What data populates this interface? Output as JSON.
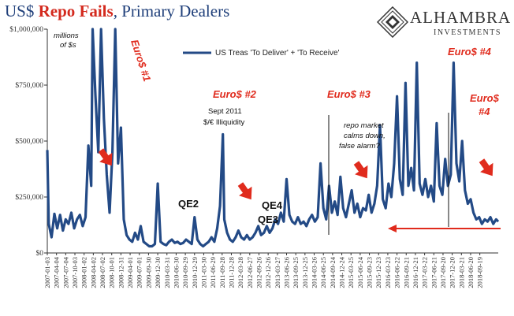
{
  "title": {
    "prefix": "US$ ",
    "highlight": "Repo Fails",
    "suffix": ", Primary Dealers"
  },
  "logo": {
    "name": "ALHAMBRA",
    "sub": "INVESTMENTS"
  },
  "colors": {
    "series": "#234a86",
    "red": "#e02b1d",
    "title_blue": "#1f3f7a"
  },
  "chart_data": {
    "type": "line",
    "series": [
      {
        "name": "US Treas 'To Deliver' + 'To Receive'",
        "x_start": "2007-01-03",
        "x_end": "2019-03-20",
        "points": [
          [
            "2007-01-03",
            460000
          ],
          [
            "2007-01-17",
            130000
          ],
          [
            "2007-02-14",
            70000
          ],
          [
            "2007-03-14",
            175000
          ],
          [
            "2007-04-11",
            110000
          ],
          [
            "2007-05-09",
            170000
          ],
          [
            "2007-06-06",
            100000
          ],
          [
            "2007-07-04",
            150000
          ],
          [
            "2007-08-01",
            130000
          ],
          [
            "2007-08-29",
            180000
          ],
          [
            "2007-09-26",
            110000
          ],
          [
            "2007-10-24",
            150000
          ],
          [
            "2007-11-21",
            170000
          ],
          [
            "2007-12-19",
            120000
          ],
          [
            "2008-01-16",
            160000
          ],
          [
            "2008-02-13",
            480000
          ],
          [
            "2008-03-12",
            300000
          ],
          [
            "2008-03-26",
            1000000
          ],
          [
            "2008-04-23",
            700000
          ],
          [
            "2008-05-21",
            450000
          ],
          [
            "2008-06-18",
            1000000
          ],
          [
            "2008-07-16",
            600000
          ],
          [
            "2008-08-13",
            350000
          ],
          [
            "2008-09-10",
            180000
          ],
          [
            "2008-10-08",
            450000
          ],
          [
            "2008-11-05",
            1000000
          ],
          [
            "2008-12-03",
            400000
          ],
          [
            "2008-12-31",
            560000
          ],
          [
            "2009-01-28",
            150000
          ],
          [
            "2009-02-25",
            80000
          ],
          [
            "2009-03-25",
            60000
          ],
          [
            "2009-04-22",
            50000
          ],
          [
            "2009-05-20",
            90000
          ],
          [
            "2009-06-17",
            60000
          ],
          [
            "2009-07-15",
            120000
          ],
          [
            "2009-08-12",
            50000
          ],
          [
            "2009-09-09",
            40000
          ],
          [
            "2009-10-07",
            30000
          ],
          [
            "2009-11-04",
            30000
          ],
          [
            "2009-12-02",
            40000
          ],
          [
            "2009-12-30",
            310000
          ],
          [
            "2010-01-27",
            50000
          ],
          [
            "2010-02-24",
            40000
          ],
          [
            "2010-03-24",
            35000
          ],
          [
            "2010-04-21",
            50000
          ],
          [
            "2010-05-19",
            60000
          ],
          [
            "2010-06-16",
            45000
          ],
          [
            "2010-07-14",
            50000
          ],
          [
            "2010-08-11",
            40000
          ],
          [
            "2010-09-08",
            45000
          ],
          [
            "2010-10-06",
            60000
          ],
          [
            "2010-11-03",
            50000
          ],
          [
            "2010-12-01",
            40000
          ],
          [
            "2010-12-29",
            160000
          ],
          [
            "2011-01-26",
            60000
          ],
          [
            "2011-02-23",
            40000
          ],
          [
            "2011-03-23",
            30000
          ],
          [
            "2011-04-20",
            40000
          ],
          [
            "2011-05-18",
            50000
          ],
          [
            "2011-06-15",
            70000
          ],
          [
            "2011-07-13",
            50000
          ],
          [
            "2011-08-10",
            110000
          ],
          [
            "2011-09-07",
            210000
          ],
          [
            "2011-10-05",
            530000
          ],
          [
            "2011-10-19",
            150000
          ],
          [
            "2011-11-16",
            90000
          ],
          [
            "2011-12-14",
            60000
          ],
          [
            "2012-01-11",
            50000
          ],
          [
            "2012-02-08",
            70000
          ],
          [
            "2012-03-07",
            100000
          ],
          [
            "2012-04-04",
            70000
          ],
          [
            "2012-05-02",
            60000
          ],
          [
            "2012-05-30",
            80000
          ],
          [
            "2012-06-27",
            60000
          ],
          [
            "2012-07-25",
            70000
          ],
          [
            "2012-08-22",
            90000
          ],
          [
            "2012-09-19",
            120000
          ],
          [
            "2012-10-17",
            80000
          ],
          [
            "2012-11-14",
            90000
          ],
          [
            "2012-12-12",
            120000
          ],
          [
            "2013-01-09",
            90000
          ],
          [
            "2013-02-06",
            110000
          ],
          [
            "2013-03-06",
            150000
          ],
          [
            "2013-04-03",
            130000
          ],
          [
            "2013-05-01",
            180000
          ],
          [
            "2013-05-29",
            140000
          ],
          [
            "2013-06-26",
            330000
          ],
          [
            "2013-07-24",
            170000
          ],
          [
            "2013-08-21",
            140000
          ],
          [
            "2013-09-18",
            130000
          ],
          [
            "2013-10-16",
            160000
          ],
          [
            "2013-11-13",
            130000
          ],
          [
            "2013-12-11",
            140000
          ],
          [
            "2014-01-08",
            120000
          ],
          [
            "2014-02-05",
            150000
          ],
          [
            "2014-03-05",
            170000
          ],
          [
            "2014-04-02",
            140000
          ],
          [
            "2014-04-30",
            160000
          ],
          [
            "2014-05-28",
            400000
          ],
          [
            "2014-06-25",
            200000
          ],
          [
            "2014-07-23",
            150000
          ],
          [
            "2014-08-20",
            300000
          ],
          [
            "2014-09-17",
            180000
          ],
          [
            "2014-10-15",
            230000
          ],
          [
            "2014-11-12",
            170000
          ],
          [
            "2014-12-10",
            340000
          ],
          [
            "2015-01-07",
            200000
          ],
          [
            "2015-02-04",
            160000
          ],
          [
            "2015-03-04",
            220000
          ],
          [
            "2015-04-01",
            280000
          ],
          [
            "2015-04-29",
            180000
          ],
          [
            "2015-05-27",
            220000
          ],
          [
            "2015-06-24",
            160000
          ],
          [
            "2015-07-22",
            200000
          ],
          [
            "2015-08-19",
            190000
          ],
          [
            "2015-09-16",
            260000
          ],
          [
            "2015-10-14",
            180000
          ],
          [
            "2015-11-11",
            220000
          ],
          [
            "2015-12-09",
            300000
          ],
          [
            "2016-01-06",
            570000
          ],
          [
            "2016-02-03",
            240000
          ],
          [
            "2016-03-02",
            200000
          ],
          [
            "2016-03-30",
            310000
          ],
          [
            "2016-04-27",
            250000
          ],
          [
            "2016-05-25",
            400000
          ],
          [
            "2016-06-22",
            700000
          ],
          [
            "2016-07-20",
            330000
          ],
          [
            "2016-08-17",
            260000
          ],
          [
            "2016-09-14",
            760000
          ],
          [
            "2016-10-12",
            300000
          ],
          [
            "2016-11-09",
            380000
          ],
          [
            "2016-12-07",
            280000
          ],
          [
            "2017-01-04",
            850000
          ],
          [
            "2017-02-01",
            310000
          ],
          [
            "2017-03-01",
            260000
          ],
          [
            "2017-03-29",
            330000
          ],
          [
            "2017-04-26",
            250000
          ],
          [
            "2017-05-24",
            300000
          ],
          [
            "2017-06-21",
            230000
          ],
          [
            "2017-07-19",
            580000
          ],
          [
            "2017-08-16",
            300000
          ],
          [
            "2017-09-13",
            260000
          ],
          [
            "2017-10-11",
            420000
          ],
          [
            "2017-11-08",
            300000
          ],
          [
            "2017-12-06",
            350000
          ],
          [
            "2018-01-03",
            850000
          ],
          [
            "2018-01-31",
            400000
          ],
          [
            "2018-02-28",
            320000
          ],
          [
            "2018-03-28",
            500000
          ],
          [
            "2018-04-25",
            280000
          ],
          [
            "2018-05-23",
            220000
          ],
          [
            "2018-06-20",
            240000
          ],
          [
            "2018-07-18",
            180000
          ],
          [
            "2018-08-15",
            150000
          ],
          [
            "2018-09-12",
            160000
          ],
          [
            "2018-10-10",
            130000
          ],
          [
            "2018-11-07",
            150000
          ],
          [
            "2018-12-05",
            140000
          ],
          [
            "2019-01-02",
            160000
          ],
          [
            "2019-01-30",
            130000
          ],
          [
            "2019-02-27",
            150000
          ],
          [
            "2019-03-20",
            140000
          ]
        ]
      }
    ],
    "ylim": [
      0,
      1000000
    ],
    "yticks": [
      "$0",
      "$250,000",
      "$500,000",
      "$750,000",
      "$1,000,000"
    ],
    "ytick_values": [
      0,
      250000,
      500000,
      750000,
      1000000
    ],
    "xticks": [
      "2007-01-03",
      "2007-04-04",
      "2007-07-04",
      "2007-10-03",
      "2008-01-02",
      "2008-04-02",
      "2008-07-02",
      "2008-10-01",
      "2008-12-31",
      "2009-04-01",
      "2009-07-01",
      "2009-09-30",
      "2009-12-30",
      "2010-03-31",
      "2010-06-30",
      "2010-09-29",
      "2010-12-29",
      "2011-03-30",
      "2011-06-29",
      "2011-09-28",
      "2011-12-28",
      "2012-03-28",
      "2012-06-27",
      "2012-09-26",
      "2012-12-26",
      "2013-03-27",
      "2013-06-26",
      "2013-09-25",
      "2013-12-25",
      "2014-03-26",
      "2014-06-25",
      "2014-09-24",
      "2014-12-24",
      "2015-03-25",
      "2015-06-24",
      "2015-09-23",
      "2015-12-23",
      "2016-03-23",
      "2016-06-22",
      "2016-09-21",
      "2016-12-21",
      "2017-03-22",
      "2017-06-21",
      "2017-09-20",
      "2017-12-20",
      "2018-03-21",
      "2018-06-20",
      "2018-09-19"
    ],
    "grid": false,
    "legend": "top"
  },
  "annotations": {
    "units": [
      "millions",
      "of $s"
    ],
    "euro1": "Euro$ #1",
    "euro2": "Euro$ #2",
    "euro3": "Euro$ #3",
    "euro4a": "Euro$ #4",
    "euro4b": [
      "Euro$",
      "#4"
    ],
    "sept2011": [
      "Sept 2011",
      "$/€ Illiquidity"
    ],
    "repo": [
      "repo market",
      "calms down,",
      "false alarm?"
    ],
    "qe2": "QE2",
    "qe3": "QE3",
    "qe4": "QE4"
  }
}
